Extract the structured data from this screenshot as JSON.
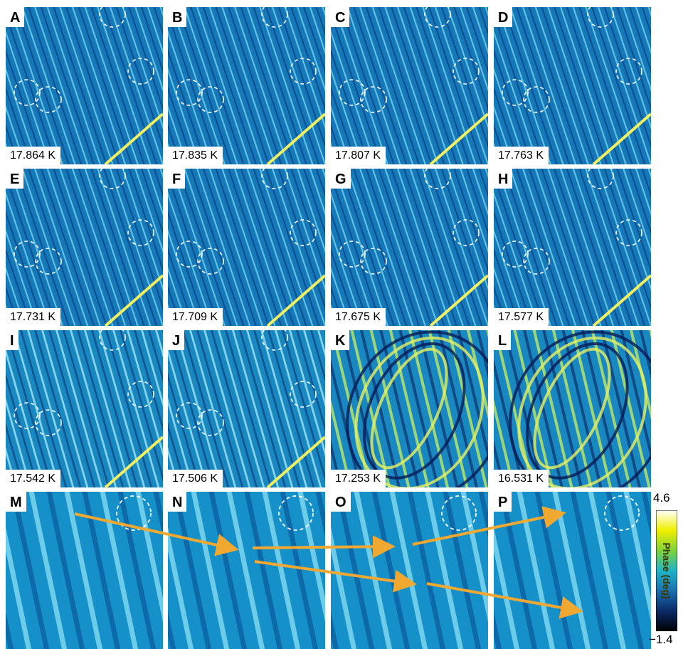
{
  "panels": [
    {
      "letter": "A",
      "temperature": "17.864 K",
      "style": "fine"
    },
    {
      "letter": "B",
      "temperature": "17.835 K",
      "style": "fine"
    },
    {
      "letter": "C",
      "temperature": "17.807 K",
      "style": "fine"
    },
    {
      "letter": "D",
      "temperature": "17.763 K",
      "style": "fine"
    },
    {
      "letter": "E",
      "temperature": "17.731 K",
      "style": "fine"
    },
    {
      "letter": "F",
      "temperature": "17.709 K",
      "style": "fine"
    },
    {
      "letter": "G",
      "temperature": "17.675 K",
      "style": "fine"
    },
    {
      "letter": "H",
      "temperature": "17.577 K",
      "style": "fine"
    },
    {
      "letter": "I",
      "temperature": "17.542 K",
      "style": "bright"
    },
    {
      "letter": "J",
      "temperature": "17.506 K",
      "style": "bright"
    },
    {
      "letter": "K",
      "temperature": "17.253 K",
      "style": "bands"
    },
    {
      "letter": "L",
      "temperature": "16.531 K",
      "style": "bands"
    },
    {
      "letter": "M",
      "temperature": "",
      "style": "zoom"
    },
    {
      "letter": "N",
      "temperature": "",
      "style": "zoom"
    },
    {
      "letter": "O",
      "temperature": "",
      "style": "zoom"
    },
    {
      "letter": "P",
      "temperature": "",
      "style": "zoom"
    }
  ],
  "colorbar": {
    "title": "Phase (deg)",
    "max_label": "4.6",
    "min_label": "−1.4",
    "colors": [
      "#ffffff",
      "#f0f000",
      "#7fd23a",
      "#1fb4c8",
      "#1a6fb0",
      "#0b2a66",
      "#000000"
    ]
  },
  "colors": {
    "arrow": "#f0a830",
    "dashed_circle": "#ffffff",
    "solid_ellipse_white": "#ffffff",
    "solid_ellipse_yellow": "#e8b040"
  }
}
